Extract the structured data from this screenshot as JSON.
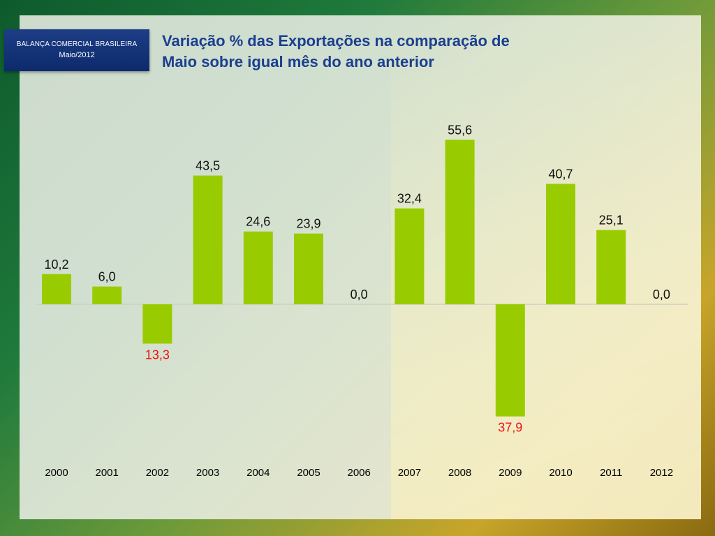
{
  "header": {
    "badge_title": "BALANÇA COMERCIAL BRASILEIRA",
    "badge_period": "Maio/2012",
    "title_line1": "Variação % das Exportações na comparação de",
    "title_line2": "Maio sobre igual mês do ano anterior"
  },
  "colors": {
    "bar": "#99cc00",
    "negative_label": "#ee1111",
    "label": "#111111",
    "title": "#1b3f8f",
    "badge": "#102e72"
  },
  "chart_data": {
    "type": "bar",
    "categories": [
      "2000",
      "2001",
      "2002",
      "2003",
      "2004",
      "2005",
      "2006",
      "2007",
      "2008",
      "2009",
      "2010",
      "2011",
      "2012"
    ],
    "values": [
      10.2,
      6.0,
      -13.3,
      43.5,
      24.6,
      23.9,
      0.0,
      32.4,
      55.6,
      -37.9,
      40.7,
      25.1,
      0.0
    ],
    "data_labels": [
      "10,2",
      "6,0",
      "13,3",
      "43,5",
      "24,6",
      "23,9",
      "0,0",
      "32,4",
      "55,6",
      "37,9",
      "40,7",
      "25,1",
      "0,0"
    ],
    "title": "Variação % das Exportações na comparação de Maio sobre igual mês do ano anterior",
    "xlabel": "",
    "ylabel": "",
    "ylim": [
      -40,
      60
    ],
    "grid": false,
    "legend": "none"
  }
}
